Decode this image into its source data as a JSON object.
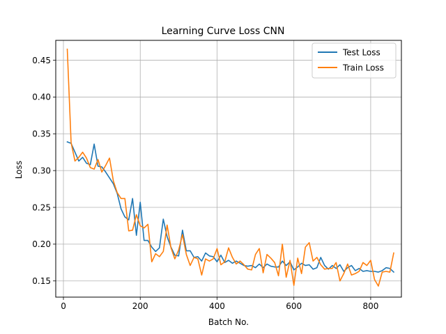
{
  "chart_data": {
    "type": "line",
    "title": "Learning Curve Loss CNN",
    "xlabel": "Batch No.",
    "ylabel": "Loss",
    "xlim": [
      -20,
      880
    ],
    "ylim": [
      0.128,
      0.477
    ],
    "xticks": [
      0,
      200,
      400,
      600,
      800
    ],
    "yticks": [
      0.15,
      0.2,
      0.25,
      0.3,
      0.35,
      0.4,
      0.45
    ],
    "xtick_labels": [
      "0",
      "200",
      "400",
      "600",
      "800"
    ],
    "ytick_labels": [
      "0.15",
      "0.20",
      "0.25",
      "0.30",
      "0.35",
      "0.40",
      "0.45"
    ],
    "grid": true,
    "legend_position": "upper right",
    "x": [
      10,
      20,
      30,
      40,
      50,
      60,
      70,
      80,
      90,
      100,
      110,
      120,
      130,
      140,
      150,
      160,
      170,
      180,
      190,
      200,
      210,
      220,
      230,
      240,
      250,
      260,
      270,
      280,
      290,
      300,
      310,
      320,
      330,
      340,
      350,
      360,
      370,
      380,
      390,
      400,
      410,
      420,
      430,
      440,
      450,
      460,
      470,
      480,
      490,
      500,
      510,
      520,
      530,
      540,
      550,
      560,
      570,
      580,
      590,
      600,
      610,
      620,
      630,
      640,
      650,
      660,
      670,
      680,
      690,
      700,
      710,
      720,
      730,
      740,
      750,
      760,
      770,
      780,
      790,
      800,
      810,
      820,
      830,
      840,
      850,
      860
    ],
    "series": [
      {
        "name": "Test Loss",
        "color": "#1f77b4",
        "values": [
          0.339,
          0.337,
          0.325,
          0.313,
          0.318,
          0.31,
          0.308,
          0.336,
          0.306,
          0.305,
          0.298,
          0.29,
          0.282,
          0.269,
          0.248,
          0.237,
          0.233,
          0.262,
          0.212,
          0.257,
          0.205,
          0.205,
          0.196,
          0.19,
          0.195,
          0.234,
          0.21,
          0.196,
          0.185,
          0.184,
          0.219,
          0.191,
          0.191,
          0.182,
          0.183,
          0.177,
          0.188,
          0.184,
          0.183,
          0.176,
          0.185,
          0.175,
          0.178,
          0.174,
          0.177,
          0.174,
          0.171,
          0.17,
          0.171,
          0.168,
          0.173,
          0.168,
          0.173,
          0.17,
          0.169,
          0.169,
          0.177,
          0.171,
          0.176,
          0.165,
          0.169,
          0.174,
          0.171,
          0.172,
          0.166,
          0.168,
          0.182,
          0.171,
          0.166,
          0.171,
          0.167,
          0.172,
          0.163,
          0.168,
          0.171,
          0.164,
          0.167,
          0.163,
          0.164,
          0.163,
          0.163,
          0.162,
          0.164,
          0.168,
          0.167,
          0.162
        ]
      },
      {
        "name": "Train Loss",
        "color": "#ff7f0e",
        "values": [
          0.465,
          0.338,
          0.313,
          0.318,
          0.325,
          0.317,
          0.304,
          0.302,
          0.315,
          0.298,
          0.307,
          0.317,
          0.286,
          0.27,
          0.262,
          0.262,
          0.218,
          0.219,
          0.24,
          0.225,
          0.222,
          0.227,
          0.176,
          0.187,
          0.183,
          0.19,
          0.226,
          0.195,
          0.18,
          0.192,
          0.213,
          0.186,
          0.171,
          0.182,
          0.18,
          0.158,
          0.18,
          0.177,
          0.18,
          0.194,
          0.172,
          0.176,
          0.195,
          0.182,
          0.173,
          0.177,
          0.172,
          0.166,
          0.165,
          0.186,
          0.194,
          0.161,
          0.186,
          0.181,
          0.175,
          0.157,
          0.2,
          0.155,
          0.178,
          0.144,
          0.181,
          0.16,
          0.196,
          0.202,
          0.177,
          0.182,
          0.172,
          0.166,
          0.167,
          0.167,
          0.175,
          0.15,
          0.16,
          0.173,
          0.158,
          0.16,
          0.163,
          0.175,
          0.171,
          0.178,
          0.152,
          0.143,
          0.162,
          0.163,
          0.162,
          0.188
        ]
      }
    ]
  }
}
